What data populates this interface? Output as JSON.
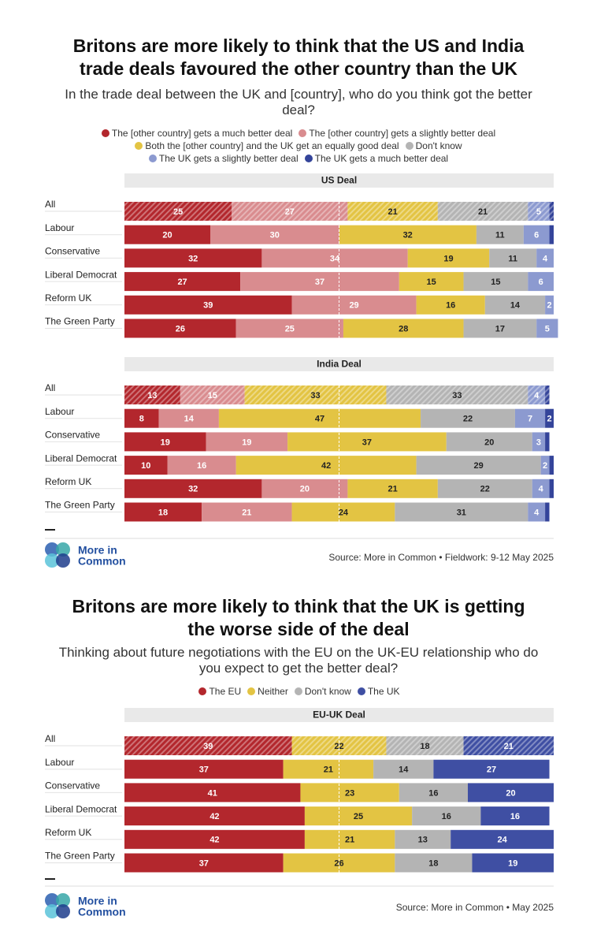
{
  "chart_data": [
    {
      "type": "bar",
      "orientation": "horizontal",
      "stacked": true,
      "title": [
        "Britons are more likely to think that the US and India",
        "trade deals favoured the other country than the UK"
      ],
      "subtitle": [
        "In the trade deal between the UK and [country], who do you think got the better",
        "deal?"
      ],
      "series": [
        {
          "name": "The [other country] gets a much better deal",
          "color": "#b3272d"
        },
        {
          "name": "The [other country] gets a slightly better deal",
          "color": "#d98c8f"
        },
        {
          "name": "Both the [other country] and the UK get an equally good deal",
          "color": "#e3c443"
        },
        {
          "name": "Don't know",
          "color": "#b4b4b4"
        },
        {
          "name": "The UK gets a slightly better deal",
          "color": "#8c9ad0"
        },
        {
          "name": "The UK gets a much better deal",
          "color": "#34449a"
        }
      ],
      "xlim": [
        0,
        100
      ],
      "reference_line": 50,
      "hatch_first_row": true,
      "panels": [
        {
          "heading": "US Deal",
          "categories": [
            "All",
            "Labour",
            "Conservative",
            "Liberal Democrat",
            "Reform UK",
            "The Green Party"
          ],
          "series": [
            {
              "values": [
                25,
                20,
                32,
                27,
                39,
                26
              ]
            },
            {
              "values": [
                27,
                30,
                34,
                37,
                29,
                25
              ]
            },
            {
              "values": [
                21,
                32,
                19,
                15,
                16,
                28
              ]
            },
            {
              "values": [
                21,
                11,
                11,
                15,
                14,
                17
              ]
            },
            {
              "values": [
                5,
                6,
                4,
                6,
                2,
                5
              ]
            },
            {
              "values": [
                1,
                1,
                0,
                0,
                0,
                0
              ]
            }
          ]
        },
        {
          "heading": "India Deal",
          "categories": [
            "All",
            "Labour",
            "Conservative",
            "Liberal Democrat",
            "Reform UK",
            "The Green Party"
          ],
          "series": [
            {
              "values": [
                13,
                8,
                19,
                10,
                32,
                18
              ]
            },
            {
              "values": [
                15,
                14,
                19,
                16,
                20,
                21
              ]
            },
            {
              "values": [
                33,
                47,
                37,
                42,
                21,
                24
              ]
            },
            {
              "values": [
                33,
                22,
                20,
                29,
                22,
                31
              ]
            },
            {
              "values": [
                4,
                7,
                3,
                2,
                4,
                4
              ]
            },
            {
              "values": [
                1,
                2,
                1,
                1,
                1,
                1
              ]
            }
          ]
        }
      ],
      "logo": [
        "More in",
        "Common"
      ],
      "source": "Source: More in Common • Fieldwork: 9-12 May 2025"
    },
    {
      "type": "bar",
      "orientation": "horizontal",
      "stacked": true,
      "title": [
        "Britons are more likely to think that the UK is getting",
        "the worse side of the deal"
      ],
      "subtitle": [
        "Thinking about future negotiations with the EU on the UK-EU relationship who do",
        "you expect to get the better deal?"
      ],
      "series": [
        {
          "name": "The EU",
          "color": "#b3272d"
        },
        {
          "name": "Neither",
          "color": "#e3c443"
        },
        {
          "name": "Don't know",
          "color": "#b4b4b4"
        },
        {
          "name": "The UK",
          "color": "#3f4fa3"
        }
      ],
      "xlim": [
        0,
        100
      ],
      "reference_line": 50,
      "hatch_first_row": true,
      "panels": [
        {
          "heading": "EU-UK Deal",
          "categories": [
            "All",
            "Labour",
            "Conservative",
            "Liberal Democrat",
            "Reform UK",
            "The Green Party"
          ],
          "series": [
            {
              "values": [
                39,
                37,
                41,
                42,
                42,
                37
              ]
            },
            {
              "values": [
                22,
                21,
                23,
                25,
                21,
                26
              ]
            },
            {
              "values": [
                18,
                14,
                16,
                16,
                13,
                18
              ]
            },
            {
              "values": [
                21,
                27,
                20,
                16,
                24,
                19
              ]
            }
          ]
        }
      ],
      "logo": [
        "More in",
        "Common"
      ],
      "source": "Source: More in Common • May 2025"
    }
  ]
}
